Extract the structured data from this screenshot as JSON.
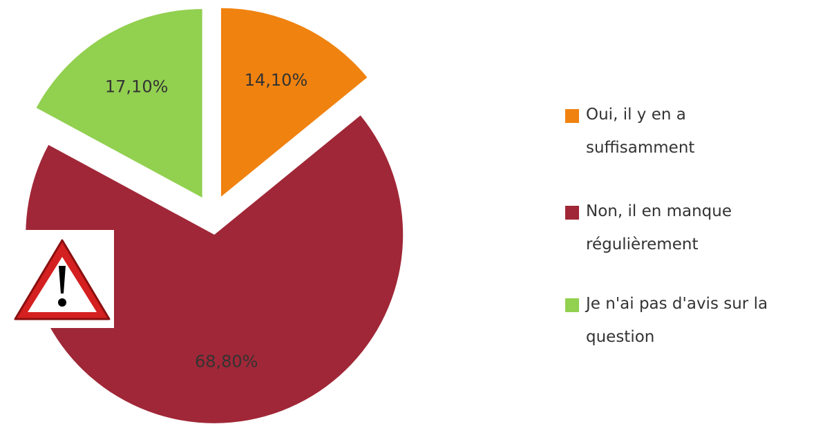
{
  "chart_data": {
    "type": "pie",
    "categories": [
      "Oui, il y en a suffisamment",
      "Non, il en manque régulièrement",
      "Je n'ai pas d'avis sur la question"
    ],
    "values": [
      14.1,
      68.8,
      17.1
    ],
    "value_labels": [
      "14,10%",
      "68,80%",
      "17,10%"
    ],
    "colors": [
      "#f0820f",
      "#a02737",
      "#92d050"
    ],
    "legend": "right"
  }
}
